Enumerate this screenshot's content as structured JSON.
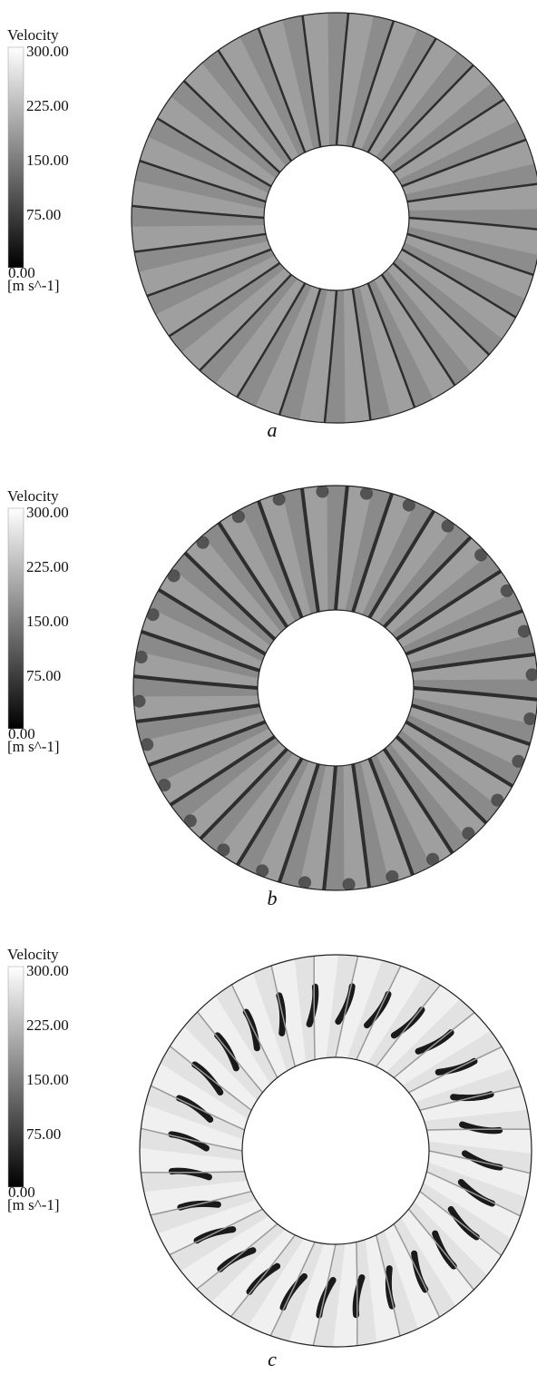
{
  "panels": [
    {
      "legend": {
        "title": "Velocity",
        "ticks": [
          "300.00",
          "225.00",
          "150.00",
          "75.00",
          "0.00"
        ],
        "unit": "[m s^-1]"
      },
      "caption": "a"
    },
    {
      "legend": {
        "title": "Velocity",
        "ticks": [
          "300.00",
          "225.00",
          "150.00",
          "75.00",
          "0.00"
        ],
        "unit": "[m s^-1]"
      },
      "caption": "b"
    },
    {
      "legend": {
        "title": "Velocity",
        "ticks": [
          "300.00",
          "225.00",
          "150.00",
          "75.00",
          "0.00"
        ],
        "unit": "[m s^-1]"
      },
      "caption": "c"
    }
  ]
}
